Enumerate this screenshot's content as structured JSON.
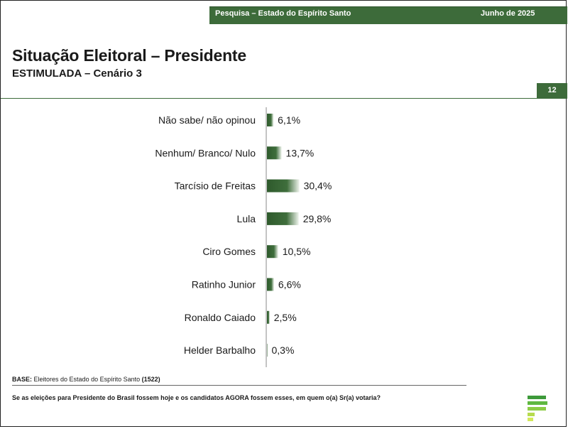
{
  "header": {
    "survey": "Pesquisa – Estado do Espírito Santo",
    "date": "Junho de 2025"
  },
  "title": "Situação Eleitoral – Presidente",
  "subtitle": "ESTIMULADA – Cenário 3",
  "page_number": "12",
  "footer": {
    "base_label": "BASE:",
    "base_text": "Eleitores do Estado do Espírito Santo",
    "base_count": "(1522)",
    "question": "Se as eleições para Presidente do Brasil fossem hoje e os candidatos AGORA fossem esses, em quem o(a) Sr(a) votaria?"
  },
  "colors": {
    "brand_green": "#3d6b3a",
    "bar_dark": "#2e5a2c",
    "bar_light": "#eef3ec"
  },
  "logo_icon": "green-stripes-logo-icon",
  "chart_data": {
    "type": "bar",
    "orientation": "horizontal",
    "categories": [
      "Não sabe/ não opinou",
      "Nenhum/ Branco/ Nulo",
      "Tarcísio de Freitas",
      "Lula",
      "Ciro Gomes",
      "Ratinho Junior",
      "Ronaldo Caiado",
      "Helder Barbalho"
    ],
    "values": [
      6.1,
      13.7,
      30.4,
      29.8,
      10.5,
      6.6,
      2.5,
      0.3
    ],
    "labels": [
      "6,1%",
      "13,7%",
      "30,4%",
      "29,8%",
      "10,5%",
      "6,6%",
      "2,5%",
      "0,3%"
    ],
    "title": "",
    "xlabel": "",
    "ylabel": "",
    "xlim": [
      0,
      100
    ],
    "grid": false,
    "legend": "none"
  }
}
